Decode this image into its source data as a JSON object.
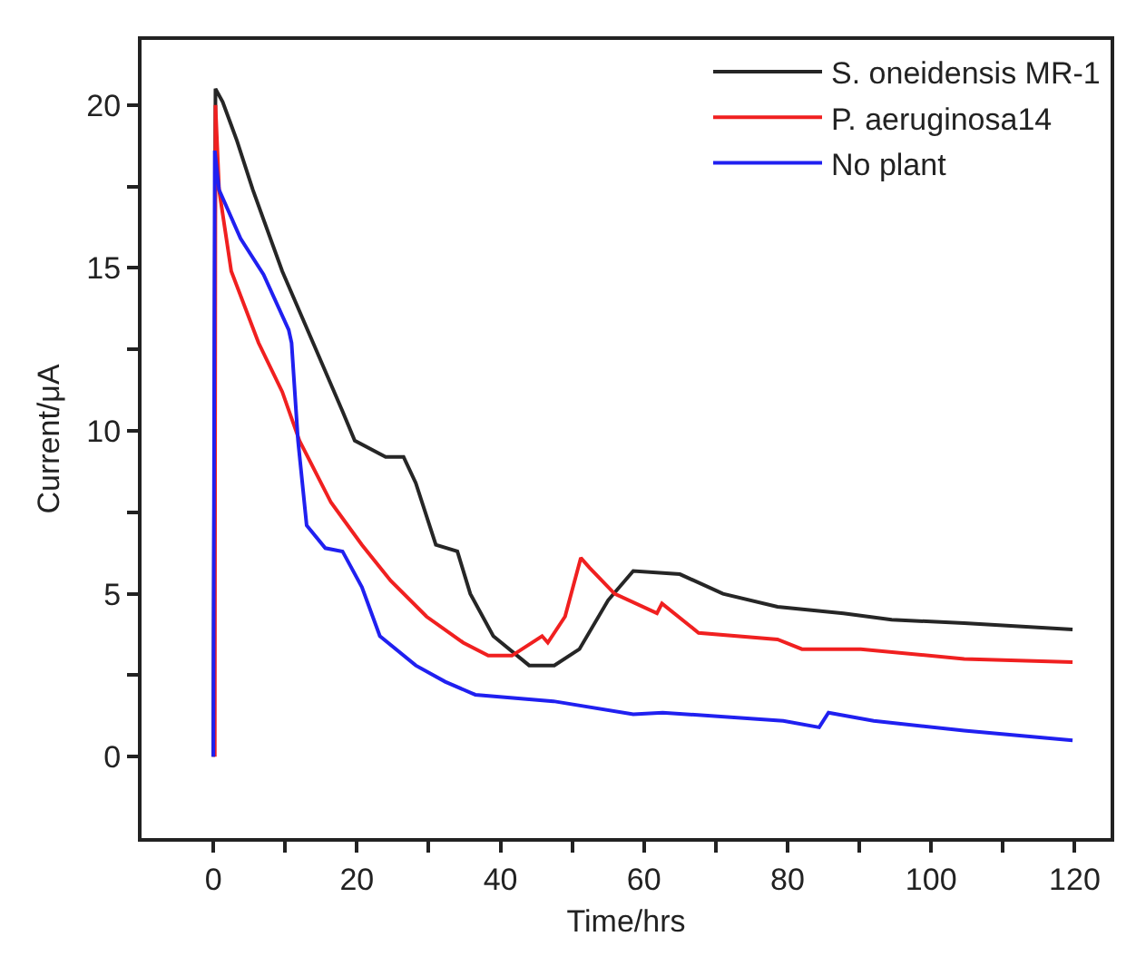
{
  "chart_data": {
    "type": "line",
    "xlabel": "Time/hrs",
    "ylabel": "Current/μA",
    "xlim": [
      -10,
      125
    ],
    "ylim": [
      -2.5,
      22
    ],
    "xticks": [
      0,
      {
        "value": 10,
        "label": null
      },
      20,
      {
        "value": 30,
        "label": null
      },
      40,
      {
        "value": 50,
        "label": null
      },
      60,
      {
        "value": 70,
        "label": null
      },
      80,
      {
        "value": 90,
        "label": null
      },
      100,
      {
        "value": 110,
        "label": null
      },
      120
    ],
    "yticks": [
      0,
      {
        "value": 2.5,
        "label": null
      },
      5,
      {
        "value": 7.5,
        "label": null
      },
      10,
      {
        "value": 12.5,
        "label": null
      },
      15,
      {
        "value": 17.5,
        "label": null
      },
      20
    ],
    "grid": false,
    "legend": "top right",
    "marker": "none",
    "line_style": "solid",
    "series": [
      {
        "name": "S. oneidensis MR-1",
        "color": "#262626",
        "x": [
          0,
          0.3,
          1.3,
          3.3,
          5.5,
          9.6,
          13.9,
          18,
          19.7,
          24,
          26.5,
          28.2,
          31,
          34,
          35.8,
          39,
          44,
          47.5,
          51,
          55,
          58.5,
          65,
          71,
          78.6,
          87.8,
          94.5,
          104.6,
          119.7
        ],
        "values": [
          0,
          20.5,
          20.1,
          18.9,
          17.4,
          14.9,
          12.7,
          10.6,
          9.7,
          9.2,
          9.2,
          8.4,
          6.5,
          6.3,
          5.0,
          3.7,
          2.8,
          2.8,
          3.3,
          4.8,
          5.7,
          5.6,
          5.0,
          4.6,
          4.4,
          4.2,
          4.1,
          3.9
        ]
      },
      {
        "name": "P. aeruginosa14",
        "color": "#f02020",
        "x": [
          0.2,
          0.3,
          0.8,
          2.5,
          6.3,
          9.6,
          12,
          16.4,
          20.7,
          24.7,
          29.7,
          34.8,
          38.3,
          41.6,
          45.8,
          46.6,
          49,
          51.2,
          52.4,
          55.9,
          61.8,
          62.5,
          67.6,
          78.6,
          82,
          90.2,
          104.6,
          119.7
        ],
        "values": [
          0,
          20.0,
          17.4,
          14.9,
          12.7,
          11.2,
          9.7,
          7.8,
          6.5,
          5.4,
          4.3,
          3.5,
          3.1,
          3.1,
          3.7,
          3.5,
          4.3,
          6.1,
          5.8,
          5.0,
          4.4,
          4.7,
          3.8,
          3.6,
          3.3,
          3.3,
          3.0,
          2.9
        ]
      },
      {
        "name": "No plant",
        "color": "#2020f0",
        "x": [
          0,
          0.2,
          0.8,
          3.8,
          7,
          10.5,
          10.9,
          11.8,
          13,
          15.6,
          18,
          20.7,
          23.2,
          28.2,
          32.3,
          36.5,
          47.4,
          58.5,
          62.6,
          79.4,
          84.4,
          85.7,
          92,
          104.6,
          119.7
        ],
        "values": [
          0,
          18.6,
          17.4,
          15.9,
          14.8,
          13.1,
          12.7,
          9.7,
          7.1,
          6.4,
          6.3,
          5.2,
          3.7,
          2.8,
          2.3,
          1.9,
          1.7,
          1.3,
          1.35,
          1.1,
          0.9,
          1.35,
          1.1,
          0.8,
          0.5
        ]
      }
    ]
  }
}
